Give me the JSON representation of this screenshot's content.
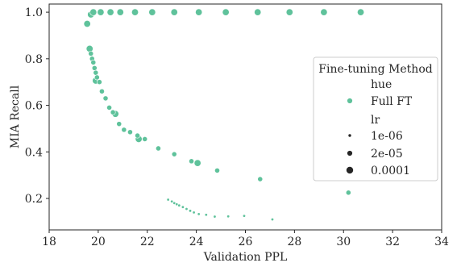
{
  "chart_data": {
    "type": "scatter",
    "xlabel": "Validation PPL",
    "ylabel": "MIA Recall",
    "xlim": [
      18,
      34
    ],
    "ylim": [
      0.065,
      1.035
    ],
    "xticks": [
      "18",
      "20",
      "22",
      "24",
      "26",
      "28",
      "30",
      "32",
      "34"
    ],
    "yticks": [
      "0.2",
      "0.4",
      "0.6",
      "0.8",
      "1.0"
    ],
    "grid": false,
    "point_color": "#5fc29b",
    "legend": {
      "placement": "center-right",
      "title": "Fine-tuning Method",
      "hue_header": "hue",
      "hue_entry": "Full FT",
      "size_header": "lr",
      "size_entries": [
        "1e-06",
        "2e-05",
        "0.0001"
      ]
    },
    "series": [
      {
        "lr": "0.0001",
        "points": [
          [
            19.55,
            0.95
          ],
          [
            19.7,
            0.99
          ],
          [
            19.8,
            1.0
          ],
          [
            20.1,
            1.0
          ],
          [
            20.5,
            1.0
          ],
          [
            20.9,
            1.0
          ],
          [
            21.5,
            1.0
          ],
          [
            22.2,
            1.0
          ],
          [
            23.1,
            1.0
          ],
          [
            24.1,
            1.0
          ],
          [
            25.2,
            1.0
          ],
          [
            26.5,
            1.0
          ],
          [
            27.8,
            1.0
          ],
          [
            29.2,
            1.0
          ],
          [
            30.7,
            1.0
          ],
          [
            19.65,
            0.843
          ],
          [
            19.9,
            0.706
          ],
          [
            20.7,
            0.563
          ],
          [
            21.65,
            0.455
          ],
          [
            24.05,
            0.352
          ]
        ]
      },
      {
        "lr": "2e-05",
        "points": [
          [
            19.7,
            0.822
          ],
          [
            19.75,
            0.8
          ],
          [
            19.8,
            0.784
          ],
          [
            19.85,
            0.76
          ],
          [
            19.9,
            0.74
          ],
          [
            19.95,
            0.72
          ],
          [
            20.05,
            0.7
          ],
          [
            20.15,
            0.66
          ],
          [
            20.3,
            0.63
          ],
          [
            20.45,
            0.59
          ],
          [
            20.6,
            0.57
          ],
          [
            20.85,
            0.52
          ],
          [
            21.05,
            0.495
          ],
          [
            21.3,
            0.485
          ],
          [
            21.6,
            0.47
          ],
          [
            21.9,
            0.455
          ],
          [
            22.45,
            0.415
          ],
          [
            23.1,
            0.39
          ],
          [
            23.8,
            0.36
          ],
          [
            24.85,
            0.32
          ],
          [
            26.6,
            0.283
          ],
          [
            30.2,
            0.225
          ]
        ]
      },
      {
        "lr": "1e-06",
        "points": [
          [
            22.85,
            0.195
          ],
          [
            23.0,
            0.187
          ],
          [
            23.1,
            0.18
          ],
          [
            23.2,
            0.175
          ],
          [
            23.3,
            0.17
          ],
          [
            23.45,
            0.163
          ],
          [
            23.6,
            0.155
          ],
          [
            23.75,
            0.147
          ],
          [
            23.9,
            0.14
          ],
          [
            24.1,
            0.133
          ],
          [
            24.4,
            0.13
          ],
          [
            24.75,
            0.122
          ],
          [
            25.3,
            0.123
          ],
          [
            25.95,
            0.125
          ],
          [
            27.1,
            0.11
          ]
        ]
      }
    ]
  }
}
